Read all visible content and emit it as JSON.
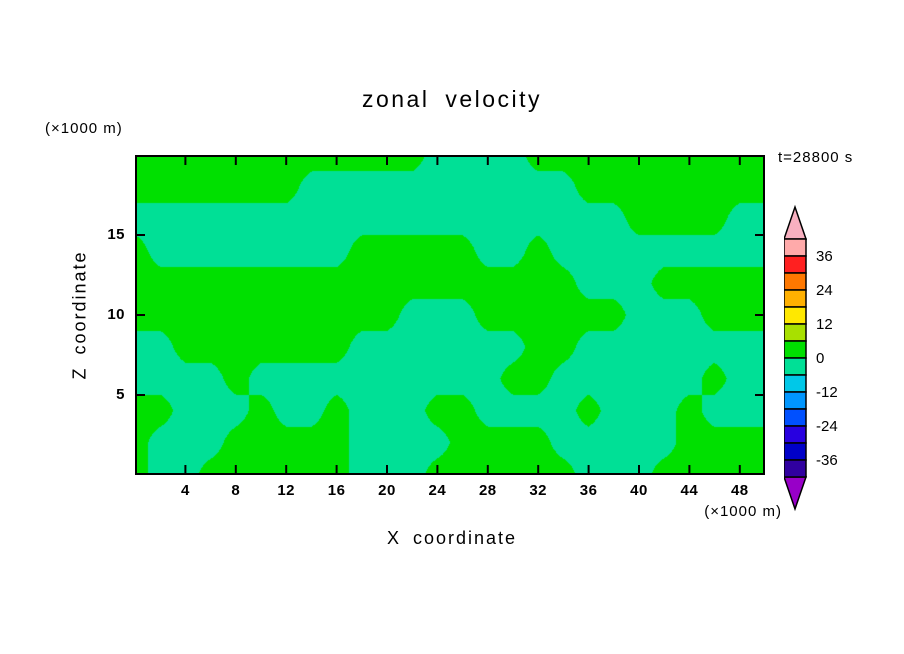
{
  "title": "zonal velocity",
  "annotations": {
    "time_label": "t=28800 s",
    "z_unit_label": "(×1000 m)",
    "x_unit_label": "(×1000 m)"
  },
  "axes": {
    "x_label": "X coordinate",
    "z_label": "Z coordinate",
    "x_range": [
      0,
      50
    ],
    "z_range": [
      0,
      20
    ],
    "x_ticks": [
      4,
      8,
      12,
      16,
      20,
      24,
      28,
      32,
      36,
      40,
      44,
      48
    ],
    "z_ticks": [
      5,
      10,
      15
    ]
  },
  "chart_data": {
    "type": "heatmap",
    "subtype": "filled-contour",
    "title": "zonal velocity",
    "xlabel": "X coordinate (×1000 m)",
    "ylabel": "Z coordinate (×1000 m)",
    "x_range": [
      0,
      50
    ],
    "z_range": [
      0,
      20
    ],
    "contour_level_step": 6,
    "value_bands_shown": [
      "0 to 6 (green)",
      "-6 to 0 (spring green)"
    ],
    "colors": {
      "positive": "#00e000",
      "negative": "#00e096"
    },
    "grid_note": "coarse sign field of zonal velocity, rows top (z=20) to bottom (z=0), cols x=0..50 step 2; positive=green band 0..6, negative=teal band -6..0",
    "grid_values_top_to_bottom": [
      [
        4,
        4,
        4,
        4,
        4,
        4,
        4,
        4,
        4,
        4,
        4,
        4,
        -4,
        -4,
        -4,
        -4,
        4,
        4,
        4,
        4,
        4,
        4,
        4,
        4,
        4,
        4
      ],
      [
        4,
        4,
        4,
        4,
        4,
        4,
        4,
        -4,
        -4,
        -4,
        -4,
        -4,
        -4,
        -4,
        -4,
        -4,
        -4,
        -4,
        4,
        4,
        4,
        4,
        4,
        4,
        4,
        4
      ],
      [
        -4,
        -4,
        -4,
        -4,
        -4,
        -4,
        -4,
        -4,
        -4,
        -4,
        -4,
        -4,
        -4,
        -4,
        -4,
        -4,
        -4,
        -4,
        -4,
        -4,
        4,
        4,
        4,
        4,
        -4,
        -4
      ],
      [
        4,
        -4,
        -4,
        -4,
        -4,
        -4,
        -4,
        -4,
        -4,
        4,
        4,
        4,
        4,
        4,
        -4,
        -4,
        4,
        -4,
        -4,
        -4,
        -4,
        -4,
        -4,
        -4,
        -4,
        -4
      ],
      [
        4,
        4,
        4,
        4,
        4,
        4,
        4,
        4,
        4,
        4,
        4,
        4,
        4,
        4,
        4,
        4,
        4,
        4,
        -4,
        -4,
        -4,
        4,
        4,
        4,
        4,
        4
      ],
      [
        4,
        4,
        4,
        4,
        4,
        4,
        4,
        4,
        4,
        4,
        4,
        -4,
        -4,
        -4,
        4,
        4,
        4,
        4,
        4,
        4,
        -4,
        -4,
        -4,
        4,
        4,
        4
      ],
      [
        -4,
        -4,
        4,
        4,
        4,
        4,
        4,
        4,
        4,
        -4,
        -4,
        -4,
        -4,
        -4,
        -4,
        -4,
        4,
        4,
        -4,
        -4,
        -4,
        -4,
        -4,
        -4,
        -4,
        -4
      ],
      [
        -4,
        -4,
        -4,
        -4,
        4,
        -4,
        -4,
        -4,
        -4,
        -4,
        -4,
        -4,
        -4,
        -4,
        -4,
        4,
        4,
        -4,
        -4,
        -4,
        -4,
        -4,
        -4,
        4,
        -4,
        -4
      ],
      [
        4,
        4,
        -4,
        -4,
        -4,
        4,
        -4,
        -4,
        4,
        -4,
        -4,
        -4,
        4,
        4,
        -4,
        -4,
        -4,
        -4,
        4,
        -4,
        -4,
        -4,
        4,
        -4,
        -4,
        -4
      ],
      [
        4,
        -4,
        -4,
        -4,
        4,
        4,
        4,
        4,
        4,
        -4,
        -4,
        -4,
        -4,
        4,
        4,
        4,
        4,
        -4,
        -4,
        -4,
        -4,
        -4,
        4,
        4,
        4,
        4
      ],
      [
        4,
        -4,
        -4,
        4,
        4,
        4,
        4,
        4,
        4,
        -4,
        -4,
        -4,
        4,
        4,
        4,
        4,
        4,
        4,
        -4,
        -4,
        -4,
        4,
        4,
        4,
        4,
        4
      ]
    ]
  },
  "colorbar": {
    "labels": [
      "36",
      "24",
      "12",
      "0",
      "-12",
      "-24",
      "-36"
    ],
    "segment_colors_top_to_bottom": [
      "#ffaaaa",
      "#ff2020",
      "#ff7800",
      "#ffb000",
      "#ffe800",
      "#a8e000",
      "#00e000",
      "#00e096",
      "#00c8e8",
      "#0096ff",
      "#0050ff",
      "#2800e0",
      "#0000c8",
      "#3000a0"
    ],
    "top_triangle_color": "#f8b0c0",
    "bottom_triangle_color": "#9800c8"
  }
}
